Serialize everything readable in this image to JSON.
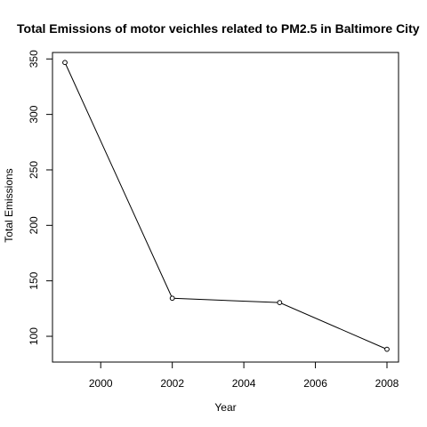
{
  "chart_data": {
    "type": "line",
    "title": "Total Emissions of motor veichles related to PM2.5 in Baltimore City",
    "xlabel": "Year",
    "ylabel": "Total Emissions",
    "x": [
      1999,
      2002,
      2005,
      2008
    ],
    "series": [
      {
        "values": [
          346.8,
          134.3,
          130.4,
          88.3
        ]
      }
    ],
    "xlim": [
      1999,
      2008
    ],
    "ylim": [
      88,
      347
    ],
    "xticks": [
      2000,
      2002,
      2004,
      2006,
      2008
    ],
    "yticks": [
      100,
      150,
      200,
      250,
      300,
      350
    ],
    "grid": false,
    "legend": "none",
    "marker": "open-circle",
    "colors": {
      "line": "#000000",
      "frame": "#000000",
      "background": "#ffffff"
    }
  }
}
